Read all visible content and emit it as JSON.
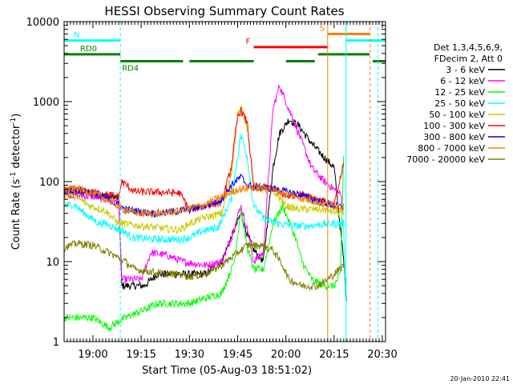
{
  "chart_data": {
    "type": "line",
    "title": "HESSI Observing Summary Count Rates",
    "xlabel": "Start Time (05-Aug-03 18:51:02)",
    "ylabel_main": "Count Rate (s",
    "ylabel_sup1": "-1",
    "ylabel_mid": " detector",
    "ylabel_sup2": "-1",
    "ylabel_end": ")",
    "footer": "20-Jan-2010 22:41",
    "y_scale": "log",
    "ylim": [
      1,
      10000
    ],
    "xlim": [
      "18:51:02",
      "20:31:00"
    ],
    "x_tick_labels": [
      "19:00",
      "19:15",
      "19:30",
      "19:45",
      "20:00",
      "20:15",
      "20:30"
    ],
    "x_ticks_min": [
      1140,
      1155,
      1170,
      1185,
      1200,
      1215,
      1230
    ],
    "y_tick_labels": [
      "1",
      "10",
      "100",
      "1000",
      "10000"
    ],
    "y_ticks": [
      1,
      10,
      100,
      1000,
      10000
    ],
    "legend": {
      "title_lines": [
        "Det 1,3,4,5,6,9,",
        "FDecim 2, Att 0"
      ],
      "placement": "right"
    },
    "series": [
      {
        "name": "3 - 6 keV",
        "color": "#000000",
        "points": [
          [
            1131,
            75
          ],
          [
            1140,
            70
          ],
          [
            1148,
            62
          ],
          [
            1149,
            5
          ],
          [
            1156,
            5
          ],
          [
            1160,
            7
          ],
          [
            1165,
            7
          ],
          [
            1175,
            7
          ],
          [
            1180,
            10
          ],
          [
            1183,
            20
          ],
          [
            1186,
            40
          ],
          [
            1188,
            22
          ],
          [
            1190,
            14
          ],
          [
            1193,
            10
          ],
          [
            1196,
            150
          ],
          [
            1198,
            400
          ],
          [
            1201,
            600
          ],
          [
            1204,
            500
          ],
          [
            1208,
            300
          ],
          [
            1212,
            200
          ],
          [
            1215,
            150
          ],
          [
            1218,
            10
          ],
          [
            1219,
            3
          ]
        ]
      },
      {
        "name": "6 - 12 keV",
        "color": "#ff00ff",
        "points": [
          [
            1131,
            70
          ],
          [
            1140,
            65
          ],
          [
            1148,
            55
          ],
          [
            1149,
            6
          ],
          [
            1155,
            6
          ],
          [
            1158,
            13
          ],
          [
            1163,
            12
          ],
          [
            1168,
            10
          ],
          [
            1175,
            9
          ],
          [
            1180,
            10
          ],
          [
            1183,
            20
          ],
          [
            1186,
            50
          ],
          [
            1188,
            25
          ],
          [
            1190,
            10
          ],
          [
            1193,
            13
          ],
          [
            1196,
            800
          ],
          [
            1198,
            1600
          ],
          [
            1200,
            1000
          ],
          [
            1204,
            400
          ],
          [
            1208,
            150
          ],
          [
            1212,
            100
          ],
          [
            1215,
            80
          ],
          [
            1217,
            70
          ],
          [
            1218,
            45
          ]
        ]
      },
      {
        "name": "12 - 25 keV",
        "color": "#00ff00",
        "points": [
          [
            1131,
            2
          ],
          [
            1140,
            2
          ],
          [
            1145,
            1.5
          ],
          [
            1150,
            2
          ],
          [
            1156,
            2.5
          ],
          [
            1160,
            3
          ],
          [
            1165,
            3
          ],
          [
            1170,
            3
          ],
          [
            1175,
            3.5
          ],
          [
            1180,
            4
          ],
          [
            1184,
            10
          ],
          [
            1186,
            45
          ],
          [
            1188,
            15
          ],
          [
            1190,
            8
          ],
          [
            1193,
            8
          ],
          [
            1196,
            30
          ],
          [
            1199,
            50
          ],
          [
            1203,
            20
          ],
          [
            1205,
            10
          ],
          [
            1208,
            6
          ],
          [
            1212,
            5
          ],
          [
            1215,
            5
          ],
          [
            1217,
            7
          ],
          [
            1218,
            250
          ]
        ]
      },
      {
        "name": "25 - 50 keV",
        "color": "#00ffff",
        "points": [
          [
            1131,
            50
          ],
          [
            1134,
            52
          ],
          [
            1138,
            38
          ],
          [
            1142,
            30
          ],
          [
            1144,
            30
          ],
          [
            1148,
            25
          ],
          [
            1149,
            25
          ],
          [
            1152,
            20
          ],
          [
            1160,
            19
          ],
          [
            1167,
            19
          ],
          [
            1170,
            20
          ],
          [
            1174,
            24
          ],
          [
            1179,
            27
          ],
          [
            1183,
            60
          ],
          [
            1185,
            200
          ],
          [
            1186,
            390
          ],
          [
            1188,
            200
          ],
          [
            1190,
            50
          ],
          [
            1193,
            35
          ],
          [
            1197,
            30
          ],
          [
            1200,
            29
          ],
          [
            1203,
            28
          ],
          [
            1207,
            28
          ],
          [
            1210,
            29
          ],
          [
            1215,
            30
          ],
          [
            1218,
            30
          ],
          [
            1218.5,
            3
          ]
        ]
      },
      {
        "name": "50 - 100 keV",
        "color": "#cccc00",
        "points": [
          [
            1131,
            66
          ],
          [
            1134,
            68
          ],
          [
            1139,
            50
          ],
          [
            1144,
            43
          ],
          [
            1148,
            30
          ],
          [
            1149,
            30
          ],
          [
            1155,
            28
          ],
          [
            1162,
            26
          ],
          [
            1167,
            25
          ],
          [
            1170,
            30
          ],
          [
            1174,
            35
          ],
          [
            1180,
            40
          ],
          [
            1183,
            120
          ],
          [
            1185,
            700
          ],
          [
            1186,
            850
          ],
          [
            1188,
            500
          ],
          [
            1190,
            90
          ],
          [
            1193,
            80
          ],
          [
            1197,
            70
          ],
          [
            1200,
            50
          ],
          [
            1203,
            46
          ],
          [
            1207,
            45
          ],
          [
            1212,
            45
          ],
          [
            1215,
            42
          ],
          [
            1218,
            40
          ]
        ]
      },
      {
        "name": "100 - 300 keV",
        "color": "#ff0000",
        "points": [
          [
            1131,
            78
          ],
          [
            1134,
            80
          ],
          [
            1138,
            76
          ],
          [
            1142,
            72
          ],
          [
            1148,
            65
          ],
          [
            1149,
            100
          ],
          [
            1153,
            75
          ],
          [
            1160,
            74
          ],
          [
            1167,
            72
          ],
          [
            1170,
            45
          ],
          [
            1175,
            50
          ],
          [
            1180,
            55
          ],
          [
            1183,
            150
          ],
          [
            1185,
            650
          ],
          [
            1186,
            780
          ],
          [
            1188,
            550
          ],
          [
            1190,
            80
          ],
          [
            1193,
            85
          ],
          [
            1197,
            80
          ],
          [
            1200,
            65
          ],
          [
            1203,
            70
          ],
          [
            1207,
            68
          ],
          [
            1210,
            60
          ],
          [
            1213,
            55
          ],
          [
            1215,
            50
          ],
          [
            1218,
            170
          ]
        ]
      },
      {
        "name": "300 - 800 keV",
        "color": "#0000ff",
        "points": [
          [
            1131,
            78
          ],
          [
            1135,
            80
          ],
          [
            1140,
            72
          ],
          [
            1145,
            60
          ],
          [
            1150,
            45
          ],
          [
            1155,
            42
          ],
          [
            1160,
            40
          ],
          [
            1165,
            42
          ],
          [
            1170,
            45
          ],
          [
            1175,
            50
          ],
          [
            1180,
            60
          ],
          [
            1183,
            90
          ],
          [
            1186,
            115
          ],
          [
            1188,
            90
          ],
          [
            1192,
            85
          ],
          [
            1196,
            82
          ],
          [
            1200,
            75
          ],
          [
            1204,
            70
          ],
          [
            1208,
            60
          ],
          [
            1212,
            55
          ],
          [
            1215,
            50
          ],
          [
            1218,
            48
          ]
        ]
      },
      {
        "name": "800 - 7000 keV",
        "color": "#ff8000",
        "points": [
          [
            1131,
            80
          ],
          [
            1135,
            82
          ],
          [
            1140,
            72
          ],
          [
            1145,
            58
          ],
          [
            1150,
            44
          ],
          [
            1155,
            40
          ],
          [
            1160,
            40
          ],
          [
            1165,
            42
          ],
          [
            1170,
            46
          ],
          [
            1175,
            52
          ],
          [
            1180,
            65
          ],
          [
            1185,
            80
          ],
          [
            1190,
            85
          ],
          [
            1195,
            82
          ],
          [
            1200,
            70
          ],
          [
            1205,
            62
          ],
          [
            1210,
            55
          ],
          [
            1215,
            50
          ],
          [
            1218,
            48
          ]
        ]
      },
      {
        "name": "7000 - 20000 keV",
        "color": "#808000",
        "points": [
          [
            1131,
            15
          ],
          [
            1135,
            17
          ],
          [
            1140,
            16
          ],
          [
            1145,
            13
          ],
          [
            1150,
            10
          ],
          [
            1153,
            8
          ],
          [
            1158,
            7.5
          ],
          [
            1163,
            7
          ],
          [
            1167,
            7
          ],
          [
            1170,
            6.5
          ],
          [
            1175,
            7
          ],
          [
            1180,
            9
          ],
          [
            1185,
            13
          ],
          [
            1188,
            16
          ],
          [
            1192,
            16
          ],
          [
            1196,
            14
          ],
          [
            1199,
            9
          ],
          [
            1201,
            6
          ],
          [
            1205,
            5
          ],
          [
            1210,
            5
          ],
          [
            1213,
            6
          ],
          [
            1215,
            7
          ],
          [
            1218,
            9
          ]
        ]
      }
    ],
    "states": [
      {
        "label": "N",
        "color": "#00ffff",
        "segments": [
          [
            1131,
            1148.5
          ],
          [
            1218.7,
            1231
          ]
        ],
        "level": 5800
      },
      {
        "label": "F",
        "color": "#ff0000",
        "segments": [
          [
            1190,
            1213
          ]
        ],
        "level": 4800
      },
      {
        "label": "S",
        "color": "#ff8000",
        "segments": [
          [
            1213,
            1226
          ]
        ],
        "level": 7000
      },
      {
        "label": "RD0",
        "color": "#008000",
        "segments": [
          [
            1131,
            1148.5
          ],
          [
            1210,
            1226
          ]
        ],
        "level": 3900
      },
      {
        "label": "RD4",
        "color": "#008000",
        "segments": [
          [
            1148.5,
            1168
          ],
          [
            1170,
            1190
          ],
          [
            1200,
            1209
          ],
          [
            1227,
            1231
          ]
        ],
        "level": 3200
      }
    ],
    "vlines": [
      {
        "x": 1148.5,
        "color": "#00ffff",
        "style": "dashed"
      },
      {
        "x": 1213,
        "color": "#ff8000",
        "style": "solid"
      },
      {
        "x": 1218.7,
        "color": "#00ffff",
        "style": "solid"
      },
      {
        "x": 1226.2,
        "color": "#ff8000",
        "style": "dashed"
      },
      {
        "x": 1228.6,
        "color": "#00ffff",
        "style": "dashed"
      }
    ]
  }
}
